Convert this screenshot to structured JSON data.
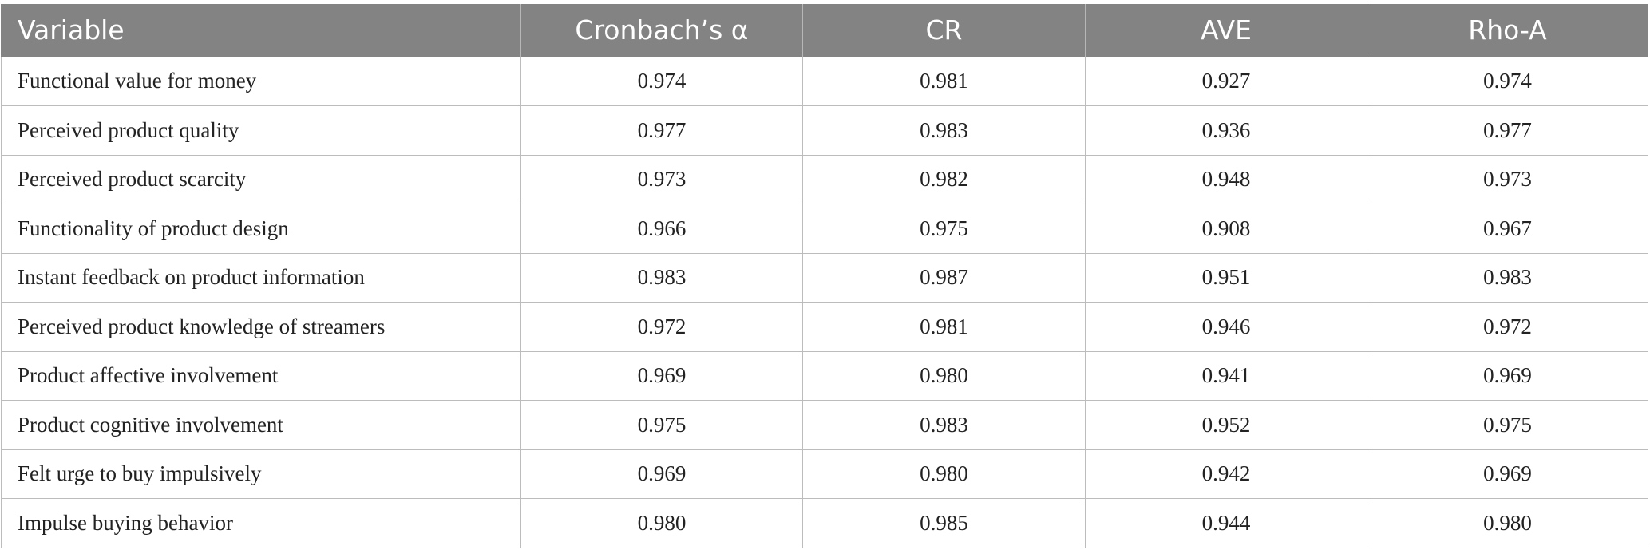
{
  "table": {
    "headers": [
      "Variable",
      "Cronbach’s α",
      "CR",
      "AVE",
      "Rho-A"
    ],
    "rows": [
      [
        "Functional value for money",
        "0.974",
        "0.981",
        "0.927",
        "0.974"
      ],
      [
        "Perceived product quality",
        "0.977",
        "0.983",
        "0.936",
        "0.977"
      ],
      [
        "Perceived product scarcity",
        "0.973",
        "0.982",
        "0.948",
        "0.973"
      ],
      [
        "Functionality of product design",
        "0.966",
        "0.975",
        "0.908",
        "0.967"
      ],
      [
        "Instant feedback on product information",
        "0.983",
        "0.987",
        "0.951",
        "0.983"
      ],
      [
        "Perceived product knowledge of streamers",
        "0.972",
        "0.981",
        "0.946",
        "0.972"
      ],
      [
        "Product affective involvement",
        "0.969",
        "0.980",
        "0.941",
        "0.969"
      ],
      [
        "Product cognitive involvement",
        "0.975",
        "0.983",
        "0.952",
        "0.975"
      ],
      [
        "Felt urge to buy impulsively",
        "0.969",
        "0.980",
        "0.942",
        "0.969"
      ],
      [
        "Impulse buying behavior",
        "0.980",
        "0.985",
        "0.944",
        "0.980"
      ]
    ]
  },
  "colors": {
    "header_background": "#838383",
    "header_text": "#ffffff",
    "grid_line": "#bcbcbc",
    "body_text": "#222222"
  }
}
